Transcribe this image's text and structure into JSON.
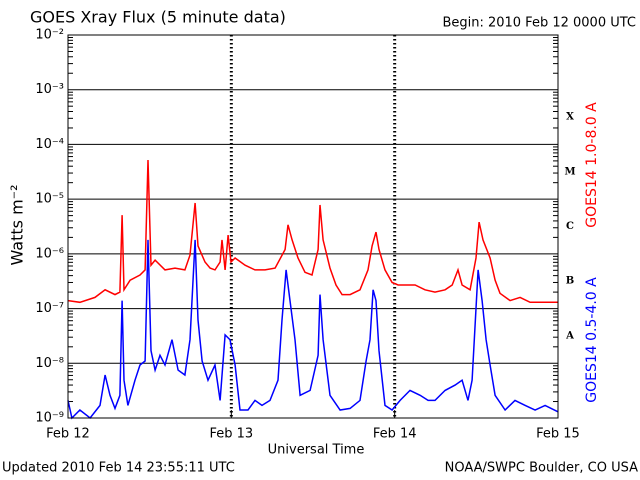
{
  "chart_data": {
    "type": "line",
    "title": "GOES Xray Flux (5 minute data)",
    "subtitle": "Begin:  2010 Feb 12 0000 UTC",
    "ylabel": "Watts m⁻²",
    "xlabel": "Universal Time",
    "footer_left": "Updated 2010 Feb 14 23:55:11 UTC",
    "footer_right": "NOAA/SWPC Boulder, CO USA",
    "log_y": true,
    "grid": true,
    "xlim": [
      0,
      3
    ],
    "xticks": [
      {
        "value": 0,
        "label": "Feb 12"
      },
      {
        "value": 1,
        "label": "Feb 13"
      },
      {
        "value": 2,
        "label": "Feb 14"
      },
      {
        "value": 3,
        "label": "Feb 15"
      }
    ],
    "ylim": [
      1e-09,
      0.01
    ],
    "yticks": [
      {
        "value": 1e-09,
        "label": "10⁻⁹"
      },
      {
        "value": 1e-08,
        "label": "10⁻⁸"
      },
      {
        "value": 1e-07,
        "label": "10⁻⁷"
      },
      {
        "value": 1e-06,
        "label": "10⁻⁶"
      },
      {
        "value": 1e-05,
        "label": "10⁻⁵"
      },
      {
        "value": 0.0001,
        "label": "10⁻⁴"
      },
      {
        "value": 0.001,
        "label": "10⁻³"
      },
      {
        "value": 0.01,
        "label": "10⁻²"
      }
    ],
    "annotations": [
      {
        "label": "A",
        "value": 1e-08
      },
      {
        "label": "B",
        "value": 1e-07
      },
      {
        "label": "C",
        "value": 1e-06
      },
      {
        "label": "M",
        "value": 1e-05
      },
      {
        "label": "X",
        "value": 0.0001
      }
    ],
    "series": [
      {
        "name": "GOES14 1.0-8.0 A",
        "color": "#ff0000",
        "x": [
          0,
          0.073,
          0.165,
          0.227,
          0.288,
          0.318,
          0.331,
          0.343,
          0.38,
          0.441,
          0.472,
          0.49,
          0.508,
          0.533,
          0.594,
          0.655,
          0.716,
          0.747,
          0.778,
          0.796,
          0.839,
          0.87,
          0.9,
          0.931,
          0.943,
          0.962,
          0.98,
          0.998,
          1.023,
          1.084,
          1.145,
          1.206,
          1.268,
          1.329,
          1.347,
          1.372,
          1.408,
          1.451,
          1.494,
          1.531,
          1.543,
          1.562,
          1.604,
          1.641,
          1.678,
          1.727,
          1.788,
          1.837,
          1.862,
          1.886,
          1.904,
          1.941,
          1.984,
          2.021,
          2.064,
          2.125,
          2.186,
          2.247,
          2.309,
          2.352,
          2.388,
          2.413,
          2.462,
          2.498,
          2.517,
          2.541,
          2.584,
          2.615,
          2.645,
          2.707,
          2.768,
          2.829,
          2.89,
          3.0
        ],
        "values": [
          1.4e-07,
          1.3e-07,
          1.6e-07,
          2.2e-07,
          1.8e-07,
          2e-07,
          5.1e-06,
          2.2e-07,
          3.3e-07,
          4.1e-07,
          5.1e-07,
          5.2e-05,
          6.2e-07,
          7.7e-07,
          5.1e-07,
          5.5e-07,
          5.1e-07,
          9.5e-07,
          8.5e-06,
          1.4e-06,
          7.1e-07,
          5.5e-07,
          5.1e-07,
          7.1e-07,
          1.8e-06,
          5.1e-07,
          2.2e-06,
          7.1e-07,
          8.4e-07,
          6.2e-07,
          5.1e-07,
          5.1e-07,
          5.5e-07,
          1.2e-06,
          3.4e-06,
          1.8e-06,
          8.4e-07,
          4.6e-07,
          4.1e-07,
          1.2e-06,
          7.8e-06,
          1.8e-06,
          5.5e-07,
          2.7e-07,
          1.8e-07,
          1.8e-07,
          2.2e-07,
          5.1e-07,
          1.4e-06,
          2.5e-06,
          1.2e-06,
          5.1e-07,
          3e-07,
          2.7e-07,
          2.7e-07,
          2.7e-07,
          2.2e-07,
          2e-07,
          2.2e-07,
          2.7e-07,
          5.1e-07,
          2.7e-07,
          2.2e-07,
          8.4e-07,
          3.8e-06,
          1.8e-06,
          8.4e-07,
          3.3e-07,
          1.9e-07,
          1.4e-07,
          1.6e-07,
          1.3e-07,
          1.3e-07,
          1.3e-07
        ]
      },
      {
        "name": "GOES14 0.5-4.0 A",
        "color": "#0000ff",
        "x": [
          0,
          0.024,
          0.073,
          0.135,
          0.196,
          0.227,
          0.257,
          0.288,
          0.318,
          0.331,
          0.343,
          0.367,
          0.41,
          0.441,
          0.472,
          0.49,
          0.508,
          0.533,
          0.563,
          0.594,
          0.637,
          0.674,
          0.716,
          0.747,
          0.778,
          0.796,
          0.821,
          0.857,
          0.9,
          0.931,
          0.962,
          0.992,
          1.023,
          1.053,
          1.102,
          1.145,
          1.188,
          1.237,
          1.286,
          1.31,
          1.335,
          1.359,
          1.39,
          1.421,
          1.482,
          1.531,
          1.543,
          1.562,
          1.604,
          1.666,
          1.727,
          1.788,
          1.825,
          1.849,
          1.868,
          1.886,
          1.904,
          1.941,
          1.984,
          2.033,
          2.094,
          2.156,
          2.205,
          2.247,
          2.309,
          2.37,
          2.413,
          2.449,
          2.474,
          2.511,
          2.535,
          2.56,
          2.584,
          2.615,
          2.676,
          2.737,
          2.799,
          2.86,
          2.921,
          3.0
        ],
        "values": [
          2.1e-09,
          1e-09,
          1.4e-09,
          1e-09,
          1.7e-09,
          6.1e-09,
          2.6e-09,
          1.5e-09,
          2.6e-09,
          1.4e-07,
          4.9e-09,
          1.7e-09,
          4.9e-09,
          9.3e-09,
          1.1e-08,
          1.8e-06,
          1.7e-08,
          7.5e-09,
          1.4e-08,
          9.3e-09,
          2.7e-08,
          7.5e-09,
          6.1e-09,
          2.7e-08,
          1.8e-06,
          6.2e-08,
          1.1e-08,
          4.9e-09,
          9.3e-09,
          2.1e-09,
          3.3e-08,
          2.7e-08,
          9.3e-09,
          1.4e-09,
          1.4e-09,
          2.1e-09,
          1.7e-09,
          2.1e-09,
          4.9e-09,
          6.2e-08,
          5.1e-07,
          1.4e-07,
          2.7e-08,
          2.6e-09,
          3.2e-09,
          1.4e-08,
          1.8e-07,
          2.7e-08,
          2.6e-09,
          1.4e-09,
          1.5e-09,
          2.1e-09,
          1.1e-08,
          2.7e-08,
          2.2e-07,
          1.4e-07,
          1.7e-08,
          1.7e-09,
          1.4e-09,
          2.1e-09,
          3.2e-09,
          2.6e-09,
          2.1e-09,
          2.1e-09,
          3.2e-09,
          4e-09,
          4.9e-09,
          2.1e-09,
          4.9e-09,
          5.1e-07,
          1.4e-07,
          2.7e-08,
          9.3e-09,
          2.6e-09,
          1.4e-09,
          2.1e-09,
          1.7e-09,
          1.4e-09,
          1.7e-09,
          1.3e-09
        ]
      }
    ]
  }
}
